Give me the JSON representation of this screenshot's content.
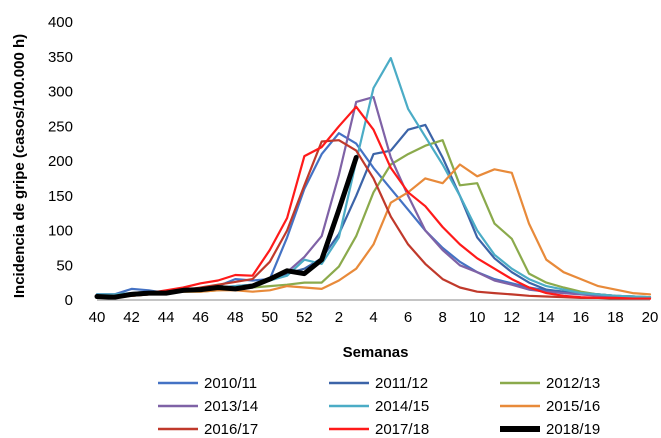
{
  "chart_data": {
    "type": "line",
    "title": "",
    "xlabel": "Semanas",
    "ylabel": "Incidencia de gripe (casos/100.000 h)",
    "ylim": [
      0,
      400
    ],
    "yticks": [
      0,
      50,
      100,
      150,
      200,
      250,
      300,
      350,
      400
    ],
    "x_positions": [
      "40",
      "41",
      "42",
      "43",
      "44",
      "45",
      "46",
      "47",
      "48",
      "49",
      "50",
      "51",
      "52",
      "1",
      "2",
      "3",
      "4",
      "5",
      "6",
      "7",
      "8",
      "9",
      "10",
      "11",
      "12",
      "13",
      "14",
      "15",
      "16",
      "17",
      "18",
      "19",
      "20"
    ],
    "x_tick_labels": [
      "40",
      "42",
      "44",
      "46",
      "48",
      "50",
      "52",
      "2",
      "4",
      "6",
      "8",
      "10",
      "12",
      "14",
      "16",
      "18",
      "20"
    ],
    "grid": false,
    "legend_position": "bottom",
    "series": [
      {
        "name": "2010/11",
        "color": "#4472C4",
        "width": 2.2,
        "values": [
          8,
          8,
          16,
          14,
          10,
          14,
          16,
          20,
          30,
          28,
          30,
          90,
          160,
          210,
          240,
          225,
          190,
          160,
          130,
          100,
          75,
          55,
          40,
          30,
          24,
          18,
          14,
          12,
          10,
          8,
          6,
          5,
          4
        ]
      },
      {
        "name": "2011/12",
        "color": "#3C64A8",
        "width": 2.2,
        "values": [
          8,
          6,
          8,
          10,
          10,
          12,
          14,
          16,
          20,
          22,
          28,
          38,
          45,
          60,
          95,
          150,
          210,
          215,
          245,
          252,
          205,
          150,
          90,
          60,
          40,
          25,
          15,
          12,
          10,
          8,
          6,
          5,
          4
        ]
      },
      {
        "name": "2012/13",
        "color": "#8BAA4C",
        "width": 2.2,
        "values": [
          5,
          5,
          6,
          8,
          10,
          12,
          12,
          14,
          16,
          18,
          20,
          22,
          25,
          25,
          48,
          92,
          155,
          195,
          210,
          222,
          230,
          165,
          168,
          110,
          88,
          38,
          25,
          18,
          12,
          8,
          6,
          5,
          4
        ]
      },
      {
        "name": "2013/14",
        "color": "#7F62A6",
        "width": 2.2,
        "values": [
          8,
          8,
          10,
          12,
          12,
          14,
          16,
          18,
          20,
          22,
          28,
          40,
          62,
          92,
          180,
          285,
          292,
          205,
          150,
          100,
          72,
          50,
          40,
          28,
          22,
          15,
          12,
          10,
          8,
          6,
          5,
          4,
          3
        ]
      },
      {
        "name": "2014/15",
        "color": "#4BACC6",
        "width": 2.2,
        "values": [
          8,
          8,
          10,
          12,
          12,
          14,
          16,
          18,
          20,
          22,
          28,
          35,
          58,
          52,
          90,
          200,
          305,
          348,
          275,
          235,
          195,
          150,
          100,
          65,
          45,
          30,
          20,
          15,
          10,
          8,
          6,
          5,
          4
        ]
      },
      {
        "name": "2015/16",
        "color": "#E88A3A",
        "width": 2.2,
        "values": [
          5,
          5,
          6,
          8,
          10,
          12,
          12,
          14,
          14,
          12,
          14,
          20,
          18,
          16,
          28,
          45,
          80,
          140,
          155,
          175,
          168,
          195,
          178,
          188,
          183,
          110,
          58,
          40,
          30,
          20,
          15,
          10,
          8
        ]
      },
      {
        "name": "2016/17",
        "color": "#C0392B",
        "width": 2.2,
        "values": [
          5,
          5,
          6,
          8,
          10,
          14,
          18,
          22,
          26,
          30,
          55,
          100,
          165,
          228,
          230,
          215,
          175,
          120,
          80,
          52,
          30,
          18,
          12,
          10,
          8,
          6,
          5,
          4,
          3,
          3,
          2,
          2,
          2
        ]
      },
      {
        "name": "2017/18",
        "color": "#FF1A1A",
        "width": 2.2,
        "values": [
          5,
          6,
          8,
          10,
          14,
          18,
          24,
          28,
          36,
          35,
          72,
          118,
          207,
          220,
          250,
          278,
          245,
          190,
          155,
          135,
          105,
          80,
          60,
          45,
          30,
          18,
          10,
          6,
          4,
          3,
          3,
          2,
          2
        ]
      },
      {
        "name": "2018/19",
        "color": "#000000",
        "width": 5,
        "values": [
          5,
          4,
          8,
          10,
          10,
          14,
          15,
          18,
          16,
          20,
          30,
          42,
          38,
          58,
          130,
          205,
          null,
          null,
          null,
          null,
          null,
          null,
          null,
          null,
          null,
          null,
          null,
          null,
          null,
          null,
          null,
          null,
          null
        ]
      }
    ]
  }
}
